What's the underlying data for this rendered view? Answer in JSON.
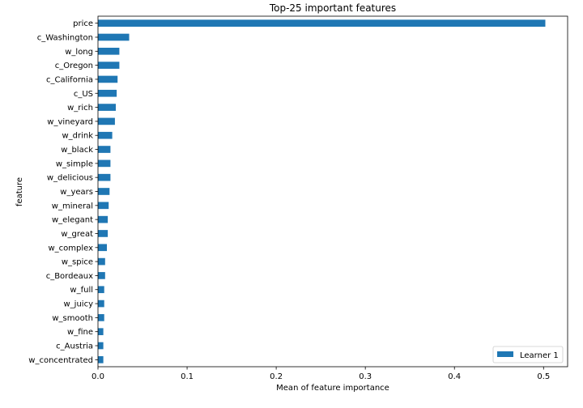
{
  "chart_data": {
    "type": "bar",
    "orientation": "horizontal",
    "title": "Top-25 important features",
    "xlabel": "Mean of feature importance",
    "ylabel": "feature",
    "xlim": [
      0,
      0.527
    ],
    "xticks": [
      "0.0",
      "0.1",
      "0.2",
      "0.3",
      "0.4",
      "0.5"
    ],
    "grid": false,
    "legend_position": "bottom-right",
    "bar_color": "#1f77b4",
    "categories": [
      "price",
      "c_Washington",
      "w_long",
      "c_Oregon",
      "c_California",
      "c_US",
      "w_rich",
      "w_vineyard",
      "w_drink",
      "w_black",
      "w_simple",
      "w_delicious",
      "w_years",
      "w_mineral",
      "w_elegant",
      "w_great",
      "w_complex",
      "w_spice",
      "c_Bordeaux",
      "w_full",
      "w_juicy",
      "w_smooth",
      "w_fine",
      "c_Austria",
      "w_concentrated"
    ],
    "series": [
      {
        "name": "Learner 1",
        "values": [
          0.502,
          0.035,
          0.024,
          0.024,
          0.022,
          0.021,
          0.02,
          0.019,
          0.016,
          0.014,
          0.014,
          0.014,
          0.013,
          0.012,
          0.011,
          0.011,
          0.01,
          0.008,
          0.008,
          0.007,
          0.007,
          0.007,
          0.006,
          0.006,
          0.006
        ]
      }
    ]
  }
}
